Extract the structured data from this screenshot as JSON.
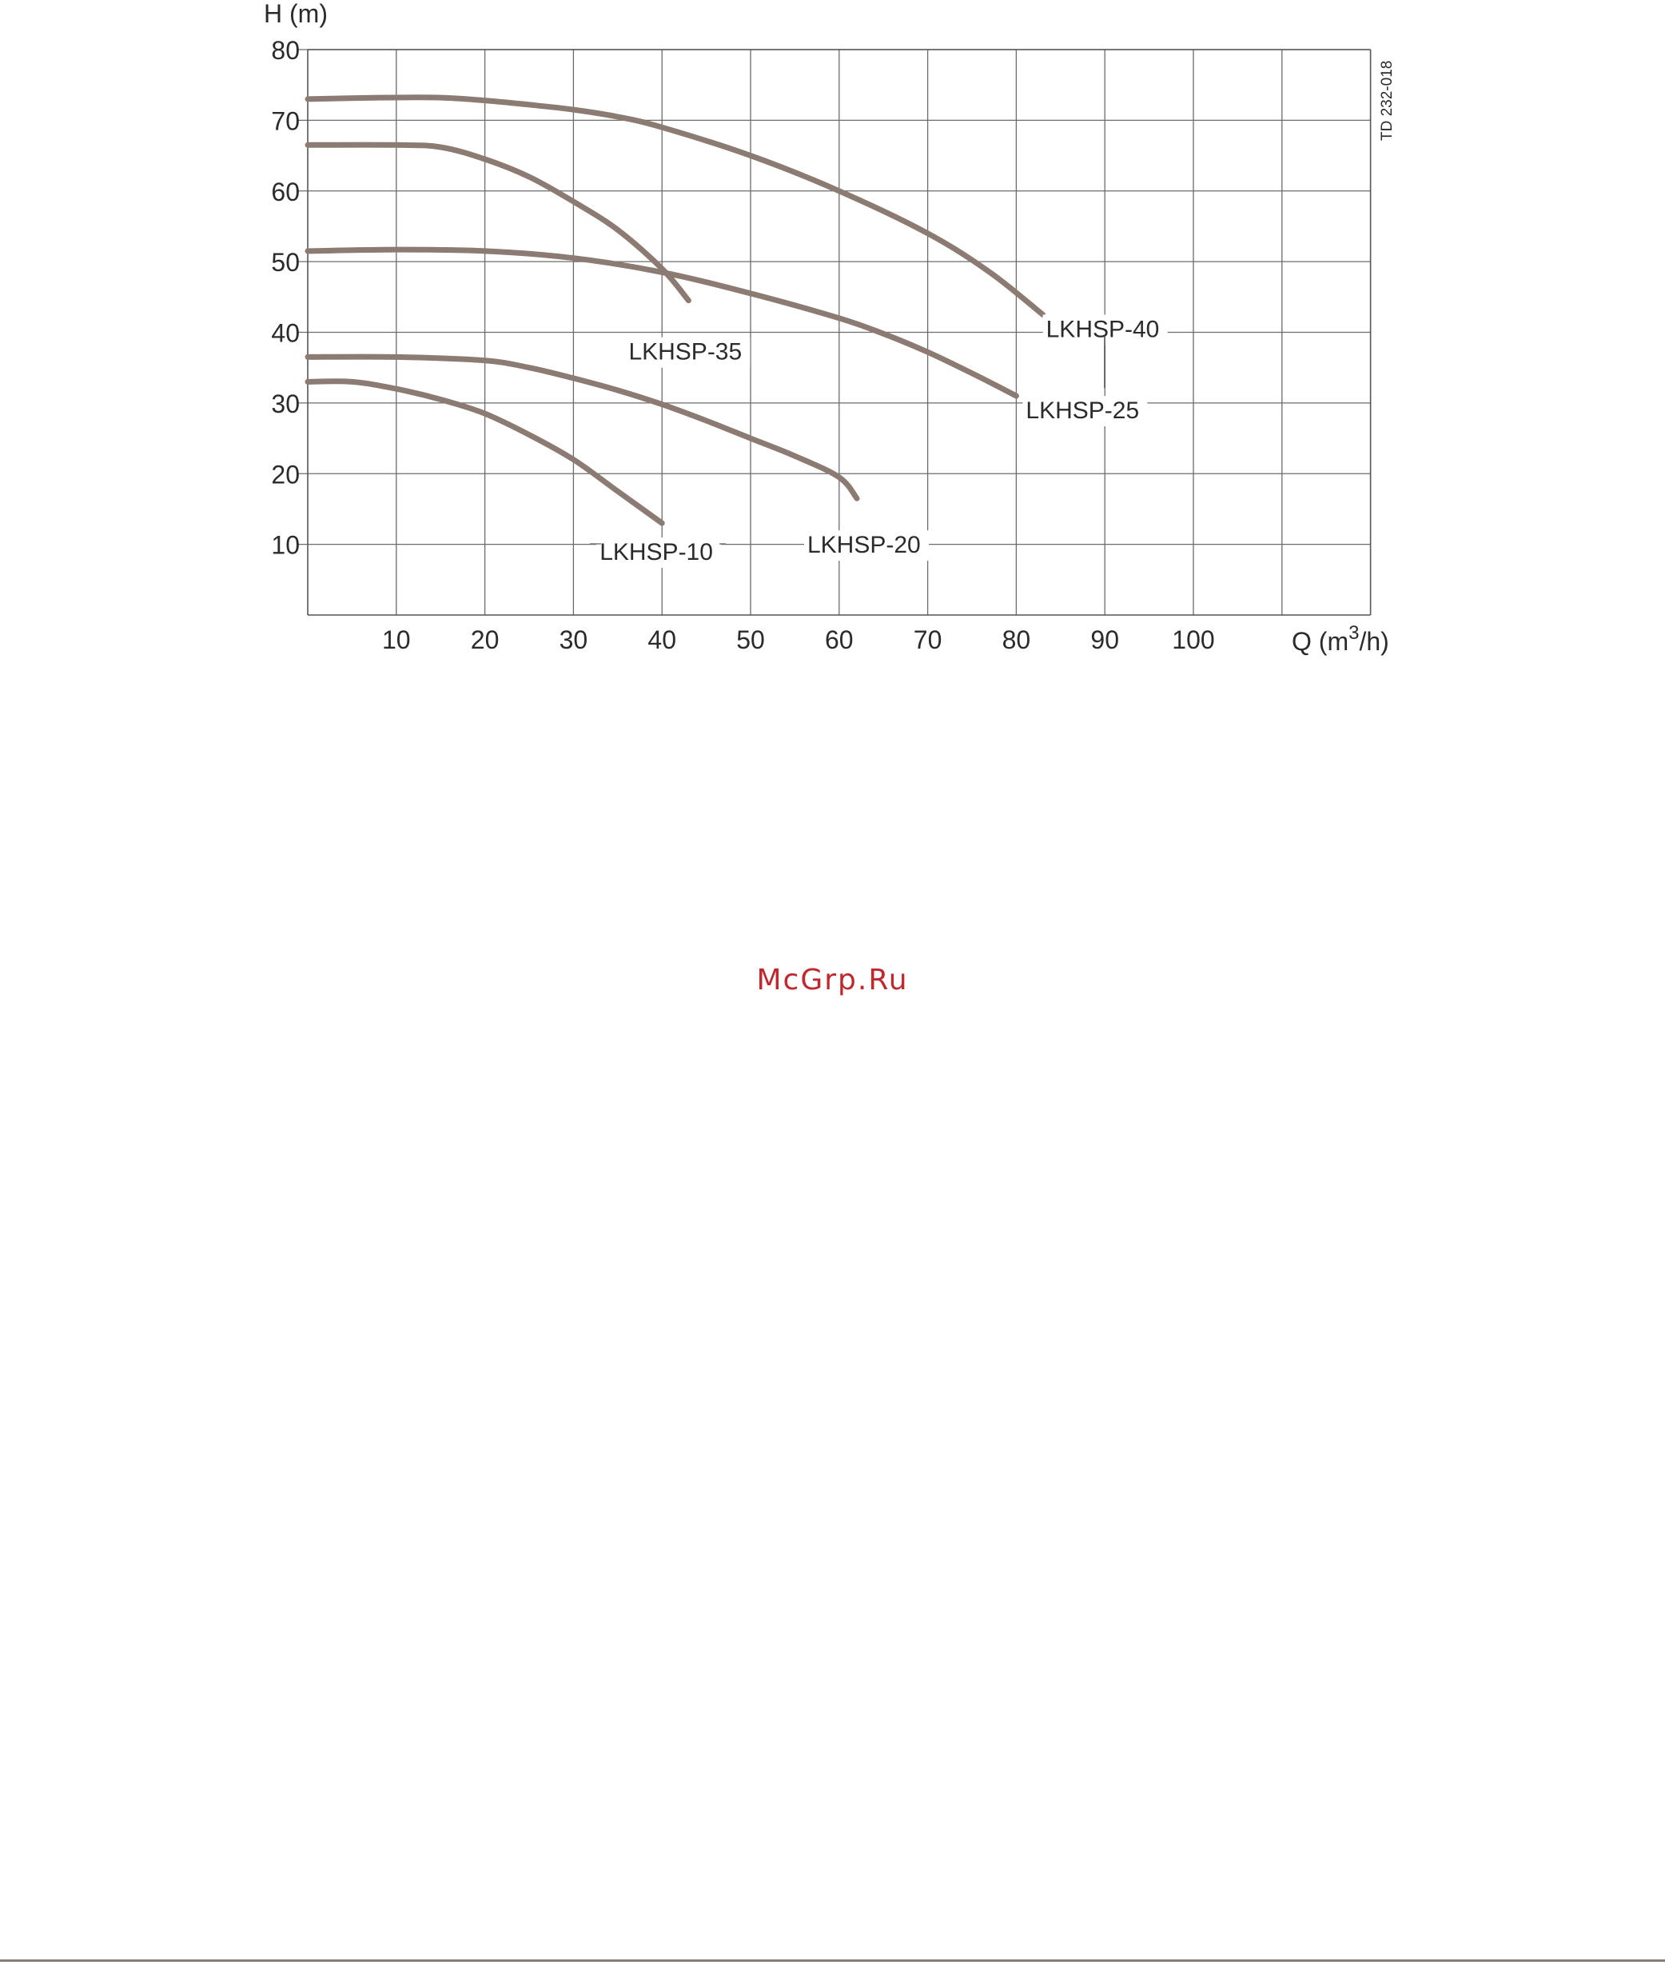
{
  "chart_data": {
    "type": "line",
    "ylabel": "H (m)",
    "xlabel": "Q (m",
    "xlabel_sup": "3",
    "xlabel_tail": "/h)",
    "xlim": [
      0,
      120
    ],
    "ylim": [
      0,
      80
    ],
    "x_ticks": [
      "10",
      "20",
      "30",
      "40",
      "50",
      "60",
      "70",
      "80",
      "90",
      "100"
    ],
    "x_tick_values": [
      10,
      20,
      30,
      40,
      50,
      60,
      70,
      80,
      90,
      100
    ],
    "y_ticks": [
      "10",
      "20",
      "30",
      "40",
      "50",
      "60",
      "70",
      "80"
    ],
    "y_tick_values": [
      10,
      20,
      30,
      40,
      50,
      60,
      70,
      80
    ],
    "grid": true,
    "reference_code": "TD 232-018",
    "line_color": "#8b7b72",
    "series": [
      {
        "name": "LKHSP-40",
        "x": [
          0,
          8,
          15,
          20,
          25,
          30,
          35,
          40,
          50,
          60,
          70,
          77,
          83
        ],
        "y": [
          73,
          73.2,
          73.2,
          72.8,
          72.2,
          71.5,
          70.5,
          69,
          65,
          60,
          54,
          48.5,
          42.5
        ]
      },
      {
        "name": "LKHSP-35",
        "x": [
          0,
          10,
          15,
          20,
          25,
          30,
          35,
          40,
          43
        ],
        "y": [
          66.5,
          66.5,
          66.2,
          64.5,
          62,
          58.5,
          54.5,
          49,
          44.5
        ]
      },
      {
        "name": "LKHSP-25",
        "x": [
          0,
          10,
          20,
          30,
          40,
          50,
          60,
          65,
          70,
          75,
          80
        ],
        "y": [
          51.5,
          51.7,
          51.5,
          50.5,
          48.5,
          45.5,
          42,
          39.8,
          37.2,
          34.2,
          31
        ]
      },
      {
        "name": "LKHSP-20",
        "x": [
          0,
          10,
          20,
          25,
          30,
          35,
          40,
          45,
          50,
          55,
          60,
          62
        ],
        "y": [
          36.5,
          36.5,
          36,
          35,
          33.5,
          31.8,
          29.8,
          27.5,
          25,
          22.5,
          19.5,
          16.5
        ]
      },
      {
        "name": "LKHSP-10",
        "x": [
          0,
          5,
          10,
          15,
          20,
          25,
          30,
          35,
          40
        ],
        "y": [
          33,
          33,
          32,
          30.5,
          28.5,
          25.5,
          22,
          17.5,
          13
        ]
      }
    ]
  },
  "watermark": "McGrp.Ru"
}
